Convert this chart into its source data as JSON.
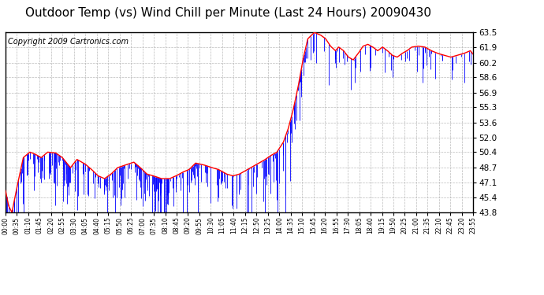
{
  "title": "Outdoor Temp (vs) Wind Chill per Minute (Last 24 Hours) 20090430",
  "copyright": "Copyright 2009 Cartronics.com",
  "yticks": [
    43.8,
    45.4,
    47.1,
    48.7,
    50.4,
    52.0,
    53.6,
    55.3,
    56.9,
    58.6,
    60.2,
    61.9,
    63.5
  ],
  "ymin": 43.8,
  "ymax": 63.5,
  "xtick_labels": [
    "00:00",
    "00:35",
    "01:10",
    "01:45",
    "02:20",
    "02:55",
    "03:30",
    "04:05",
    "04:40",
    "05:15",
    "05:50",
    "06:25",
    "07:00",
    "07:35",
    "08:10",
    "08:45",
    "09:20",
    "09:55",
    "10:30",
    "11:05",
    "11:40",
    "12:15",
    "12:50",
    "13:25",
    "14:00",
    "14:35",
    "15:10",
    "15:45",
    "16:20",
    "16:55",
    "17:30",
    "18:05",
    "18:40",
    "19:15",
    "19:50",
    "20:25",
    "21:00",
    "21:35",
    "22:10",
    "22:45",
    "23:20",
    "23:55"
  ],
  "line_color": "#FF0000",
  "bar_color": "#0000FF",
  "bg_color": "#FFFFFF",
  "grid_color": "#AAAAAA",
  "title_fontsize": 11,
  "copyright_fontsize": 7,
  "smooth_points_x": [
    0,
    10,
    20,
    35,
    55,
    75,
    90,
    110,
    130,
    155,
    175,
    200,
    220,
    245,
    265,
    285,
    305,
    325,
    345,
    370,
    395,
    415,
    435,
    455,
    480,
    505,
    525,
    545,
    565,
    585,
    610,
    635,
    655,
    680,
    700,
    720,
    745,
    770,
    795,
    815,
    835,
    855,
    870,
    885,
    900,
    915,
    930,
    950,
    970,
    985,
    1000,
    1015,
    1025,
    1040,
    1055,
    1070,
    1085,
    1100,
    1115,
    1130,
    1145,
    1160,
    1175,
    1190,
    1205,
    1220,
    1235,
    1250,
    1270,
    1290,
    1310,
    1330,
    1350,
    1370,
    1390,
    1410,
    1430,
    1439
  ],
  "smooth_points_y": [
    46.2,
    44.5,
    43.8,
    46.5,
    49.8,
    50.4,
    50.2,
    49.8,
    50.4,
    50.3,
    49.8,
    48.7,
    49.6,
    49.1,
    48.5,
    47.8,
    47.5,
    48.0,
    48.7,
    49.0,
    49.3,
    48.7,
    48.0,
    47.8,
    47.5,
    47.5,
    47.8,
    48.2,
    48.5,
    49.2,
    49.0,
    48.7,
    48.5,
    48.0,
    47.8,
    48.0,
    48.5,
    49.0,
    49.5,
    50.0,
    50.4,
    51.5,
    53.0,
    55.0,
    57.5,
    60.5,
    62.8,
    63.5,
    63.2,
    62.8,
    62.0,
    61.5,
    61.9,
    61.5,
    60.8,
    60.5,
    61.2,
    62.0,
    62.2,
    61.9,
    61.5,
    61.9,
    61.5,
    61.0,
    60.8,
    61.2,
    61.5,
    61.9,
    62.0,
    61.9,
    61.5,
    61.2,
    61.0,
    60.8,
    61.0,
    61.2,
    61.5,
    61.1
  ],
  "spike_seed": 12345,
  "n_spikes_early": 200,
  "n_spikes_mid": 80,
  "n_spikes_late": 60,
  "spike_magnitude_early": 2.5,
  "spike_magnitude_mid": 3.0,
  "spike_magnitude_late": 1.8
}
